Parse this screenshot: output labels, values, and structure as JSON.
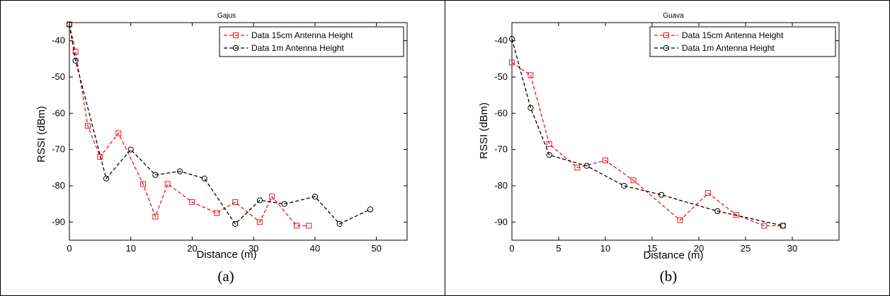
{
  "panels": [
    {
      "caption": "(a)",
      "chart_data": {
        "type": "line",
        "title": "Gajus",
        "xlabel": "Distance (m)",
        "ylabel": "RSSI (dBm)",
        "xlim": [
          0,
          55
        ],
        "ylim": [
          -95,
          -35
        ],
        "xticks": [
          0,
          10,
          20,
          30,
          40,
          50
        ],
        "yticks": [
          -40,
          -50,
          -60,
          -70,
          -80,
          -90
        ],
        "grid": false,
        "legend_position": "top-right",
        "series": [
          {
            "name": "Data 15cm Antenna Height",
            "color": "#e8141a",
            "marker": "square",
            "x": [
              0,
              1,
              3,
              5,
              8,
              12,
              14,
              16,
              20,
              24,
              27,
              31,
              33,
              37,
              39
            ],
            "y": [
              -35.5,
              -43,
              -63.5,
              -72,
              -65.5,
              -79.5,
              -88.5,
              -79.5,
              -84.5,
              -87.5,
              -84.5,
              -90,
              -83,
              -91,
              -91
            ]
          },
          {
            "name": "Data 1m Antenna Height",
            "color": "#000000",
            "marker": "circle",
            "x": [
              0,
              1,
              6,
              10,
              14,
              18,
              22,
              27,
              31,
              35,
              40,
              44,
              49
            ],
            "y": [
              -35.5,
              -45.5,
              -78,
              -70,
              -77,
              -76,
              -78,
              -90.5,
              -84,
              -85,
              -83,
              -90.5,
              -86.5
            ]
          }
        ]
      }
    },
    {
      "caption": "(b)",
      "chart_data": {
        "type": "line",
        "title": "Guava",
        "xlabel": "Distance (m)",
        "ylabel": "RSSI (dBm)",
        "xlim": [
          0,
          35
        ],
        "ylim": [
          -95,
          -35
        ],
        "xticks": [
          0,
          5,
          10,
          15,
          20,
          25,
          30
        ],
        "yticks": [
          -40,
          -50,
          -60,
          -70,
          -80,
          -90
        ],
        "grid": false,
        "legend_position": "top-right",
        "series": [
          {
            "name": "Data 15cm Antenna Height",
            "color": "#e8141a",
            "marker": "square",
            "x": [
              0,
              2,
              4,
              7,
              10,
              13,
              18,
              21,
              24,
              27,
              29
            ],
            "y": [
              -46,
              -49.5,
              -68.5,
              -75,
              -73,
              -78.5,
              -89.5,
              -82,
              -88,
              -91,
              -91
            ]
          },
          {
            "name": "Data 1m Antenna Height",
            "color": "#000000",
            "marker": "circle",
            "x": [
              0,
              2,
              4,
              8,
              12,
              16,
              22,
              29
            ],
            "y": [
              -39.5,
              -58.5,
              -71.5,
              -74.5,
              -80,
              -82.5,
              -87,
              -91
            ]
          }
        ]
      }
    }
  ]
}
